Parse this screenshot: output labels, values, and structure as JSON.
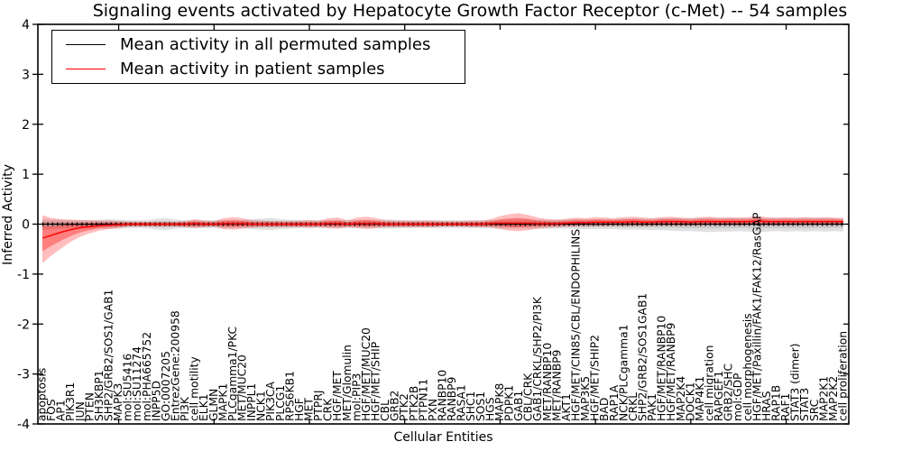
{
  "title": "Signaling events activated by Hepatocyte Growth Factor Receptor (c-Met) -- 54 samples",
  "legend": {
    "items": [
      {
        "label": "Mean activity in all permuted samples",
        "color": "#000000"
      },
      {
        "label": "Mean activity in patient samples",
        "color": "#ff0000"
      }
    ]
  },
  "axes": {
    "ylabel": "Inferred Activity",
    "xlabel": "Cellular Entities",
    "ylim": [
      -4,
      4
    ],
    "yticks": [
      "4",
      "3",
      "2",
      "1",
      "0",
      "-1",
      "-2",
      "-3",
      "-4"
    ],
    "ytick_values": [
      4,
      3,
      2,
      1,
      0,
      -1,
      -2,
      -3,
      -4
    ]
  },
  "colors": {
    "axis": "#000000",
    "permuted_line": "#000000",
    "patient_line": "#ff0000",
    "permuted_band": "#999999",
    "patient_band": "#ff0000"
  },
  "chart_data": {
    "type": "line",
    "title": "Signaling events activated by Hepatocyte Growth Factor Receptor (c-Met) -- 54 samples",
    "xlabel": "Cellular Entities",
    "ylabel": "Inferred Activity",
    "ylim": [
      -4,
      4
    ],
    "grid": false,
    "legend_position": "upper left",
    "categories": [
      "apoptosis",
      "FOS",
      "AP1",
      "PIK3R1",
      "JUN",
      "PTEN",
      "SH3KBP1",
      "SHP2/GRB2/SOS1/GAB1",
      "MAPK3",
      "mol:SU5416",
      "mol:SU11274",
      "mol:PHA665752",
      "INPP5D",
      "GO:0007205",
      "EntrezGene:200958",
      "PI3K",
      "cell motility",
      "ELK1",
      "GLMN",
      "MAPK1",
      "PLCgamma1/PKC",
      "MET/MUC20",
      "INPPL1",
      "NCK1",
      "PIK3CA",
      "PLCG1",
      "RPS6KB1",
      "HGF",
      "MET",
      "PTPRJ",
      "CRK",
      "HGF/MET",
      "MET/Glomulin",
      "mol:PIP3",
      "HGF/MET/MUC20",
      "HGF/MET/SHIP",
      "CBL",
      "GRB2",
      "PTK2",
      "PTK2B",
      "PTPN11",
      "PXN",
      "RANBP10",
      "RANBP9",
      "RASA1",
      "SHC1",
      "SOS1",
      "HGS",
      "MAPK8",
      "PDPK1",
      "GAB1",
      "CBL/CRK",
      "GAB1/CRKL/SHP2/PI3K",
      "MET/RANBP10",
      "MET/RANBP9",
      "AKT1",
      "HGF/MET/CIN85/CBL/ENDOPHILINS",
      "MAP3K5",
      "HGF/MET/SHIP2",
      "BAD",
      "RAP1A",
      "NCK/PLCgamma1",
      "CRKL",
      "SHP2/GRB2/SOS1GAB1",
      "PAK1",
      "HGF/MET/RANBP10",
      "HGF/MET/RANBP9",
      "MAP2K4",
      "DOCK1",
      "MAP4K1",
      "cell migration",
      "RAPGEF1",
      "GRB2/SHC",
      "mol:GDP",
      "cell morphogenesis",
      "HGF/MET/Paxillin/FAK1/FAK12/RasGAP",
      "HRAS",
      "RAP1B",
      "RAF1",
      "STAT3 (dimer)",
      "STAT3",
      "SRC",
      "MAP2K1",
      "MAP2K2",
      "cell proliferation"
    ],
    "series": [
      {
        "name": "Mean activity in all permuted samples",
        "color": "#000000",
        "values": [
          0,
          0,
          0,
          0,
          0,
          0,
          0,
          0,
          0,
          0,
          0,
          0,
          0,
          0,
          0,
          0,
          0,
          0,
          0,
          0,
          0,
          0,
          0,
          0,
          0,
          0,
          0,
          0,
          0,
          0,
          0,
          0,
          0,
          0,
          0,
          0,
          0,
          0,
          0,
          0,
          0,
          0,
          0,
          0,
          0,
          0,
          0,
          0,
          0,
          0,
          0,
          0,
          0,
          0,
          0,
          0,
          0,
          0,
          0,
          0,
          0,
          0,
          0,
          0,
          0,
          0,
          0,
          0,
          0,
          0,
          0,
          0,
          0,
          0,
          0,
          0,
          0,
          0,
          0,
          0,
          0,
          0,
          0,
          0,
          0
        ],
        "band_upper": [
          0.1,
          0.09,
          0.09,
          0.08,
          0.08,
          0.08,
          0.09,
          0.1,
          0.09,
          0.08,
          0.08,
          0.08,
          0.11,
          0.12,
          0.09,
          0.08,
          0.08,
          0.08,
          0.08,
          0.08,
          0.08,
          0.08,
          0.1,
          0.11,
          0.12,
          0.1,
          0.09,
          0.08,
          0.08,
          0.08,
          0.08,
          0.08,
          0.08,
          0.08,
          0.08,
          0.08,
          0.09,
          0.09,
          0.08,
          0.08,
          0.08,
          0.08,
          0.08,
          0.08,
          0.08,
          0.08,
          0.08,
          0.08,
          0.09,
          0.09,
          0.09,
          0.09,
          0.09,
          0.09,
          0.09,
          0.09,
          0.1,
          0.1,
          0.1,
          0.1,
          0.1,
          0.11,
          0.11,
          0.11,
          0.11,
          0.12,
          0.12,
          0.12,
          0.12,
          0.12,
          0.13,
          0.12,
          0.12,
          0.12,
          0.12,
          0.13,
          0.12,
          0.12,
          0.12,
          0.12,
          0.13,
          0.12,
          0.12,
          0.12,
          0.12
        ],
        "band_lower": [
          -0.12,
          -0.1,
          -0.1,
          -0.09,
          -0.09,
          -0.08,
          -0.08,
          -0.1,
          -0.09,
          -0.08,
          -0.08,
          -0.08,
          -0.11,
          -0.12,
          -0.09,
          -0.08,
          -0.08,
          -0.08,
          -0.08,
          -0.08,
          -0.08,
          -0.08,
          -0.1,
          -0.11,
          -0.12,
          -0.1,
          -0.09,
          -0.08,
          -0.08,
          -0.08,
          -0.08,
          -0.08,
          -0.08,
          -0.08,
          -0.08,
          -0.08,
          -0.09,
          -0.09,
          -0.08,
          -0.08,
          -0.08,
          -0.08,
          -0.08,
          -0.08,
          -0.08,
          -0.08,
          -0.08,
          -0.08,
          -0.09,
          -0.09,
          -0.09,
          -0.09,
          -0.09,
          -0.09,
          -0.09,
          -0.09,
          -0.1,
          -0.1,
          -0.1,
          -0.1,
          -0.1,
          -0.11,
          -0.11,
          -0.11,
          -0.12,
          -0.12,
          -0.13,
          -0.14,
          -0.14,
          -0.15,
          -0.16,
          -0.15,
          -0.15,
          -0.14,
          -0.15,
          -0.16,
          -0.15,
          -0.14,
          -0.15,
          -0.14,
          -0.15,
          -0.14,
          -0.15,
          -0.14,
          -0.15
        ]
      },
      {
        "name": "Mean activity in patient samples",
        "color": "#ff0000",
        "values": [
          -0.28,
          -0.22,
          -0.16,
          -0.11,
          -0.07,
          -0.05,
          -0.03,
          -0.02,
          -0.01,
          0,
          0,
          0,
          0,
          0,
          0,
          0,
          0.01,
          0,
          0,
          0.01,
          0.01,
          0.01,
          0,
          0,
          0,
          0,
          0,
          0,
          0,
          0,
          0.01,
          0.01,
          0,
          0.01,
          0.01,
          0.01,
          0,
          0,
          0,
          0,
          0,
          0,
          0,
          0,
          0,
          0,
          0,
          0.01,
          0.02,
          0.02,
          0.02,
          0.02,
          0.01,
          0.01,
          0.01,
          0.02,
          0.03,
          0.03,
          0.04,
          0.04,
          0.04,
          0.04,
          0.05,
          0.04,
          0.04,
          0.05,
          0.05,
          0.05,
          0.04,
          0.05,
          0.05,
          0.05,
          0.05,
          0.05,
          0.05,
          0.06,
          0.05,
          0.05,
          0.05,
          0.05,
          0.05,
          0.05,
          0.05,
          0.05,
          0.05
        ],
        "band_upper": [
          0.18,
          0.12,
          0.1,
          0.09,
          0.08,
          0.08,
          0.07,
          0.07,
          0.06,
          0.05,
          0.05,
          0.05,
          0.05,
          0.05,
          0.05,
          0.06,
          0.1,
          0.07,
          0.06,
          0.12,
          0.14,
          0.12,
          0.08,
          0.07,
          0.06,
          0.06,
          0.06,
          0.07,
          0.08,
          0.07,
          0.12,
          0.13,
          0.08,
          0.13,
          0.15,
          0.12,
          0.08,
          0.07,
          0.07,
          0.07,
          0.07,
          0.07,
          0.06,
          0.06,
          0.06,
          0.07,
          0.07,
          0.1,
          0.16,
          0.2,
          0.22,
          0.18,
          0.13,
          0.1,
          0.09,
          0.11,
          0.13,
          0.12,
          0.14,
          0.13,
          0.12,
          0.14,
          0.15,
          0.13,
          0.12,
          0.14,
          0.15,
          0.13,
          0.12,
          0.14,
          0.15,
          0.13,
          0.14,
          0.13,
          0.14,
          0.16,
          0.14,
          0.13,
          0.14,
          0.13,
          0.14,
          0.13,
          0.14,
          0.13,
          0.12
        ],
        "band_lower": [
          -0.78,
          -0.62,
          -0.48,
          -0.35,
          -0.25,
          -0.18,
          -0.13,
          -0.1,
          -0.08,
          -0.05,
          -0.05,
          -0.05,
          -0.05,
          -0.05,
          -0.05,
          -0.06,
          -0.08,
          -0.06,
          -0.05,
          -0.1,
          -0.11,
          -0.09,
          -0.07,
          -0.06,
          -0.06,
          -0.06,
          -0.06,
          -0.06,
          -0.07,
          -0.06,
          -0.08,
          -0.09,
          -0.06,
          -0.08,
          -0.1,
          -0.08,
          -0.06,
          -0.06,
          -0.06,
          -0.06,
          -0.06,
          -0.06,
          -0.05,
          -0.05,
          -0.05,
          -0.06,
          -0.06,
          -0.07,
          -0.1,
          -0.13,
          -0.14,
          -0.12,
          -0.09,
          -0.07,
          -0.06,
          -0.05,
          -0.05,
          -0.04,
          -0.04,
          -0.04,
          -0.03,
          -0.04,
          -0.03,
          -0.04,
          -0.03,
          -0.03,
          -0.03,
          -0.03,
          -0.03,
          -0.03,
          -0.02,
          -0.03,
          -0.02,
          -0.03,
          -0.02,
          -0.02,
          -0.02,
          -0.03,
          -0.02,
          -0.02,
          -0.02,
          -0.02,
          -0.02,
          -0.02,
          -0.02
        ]
      }
    ]
  }
}
